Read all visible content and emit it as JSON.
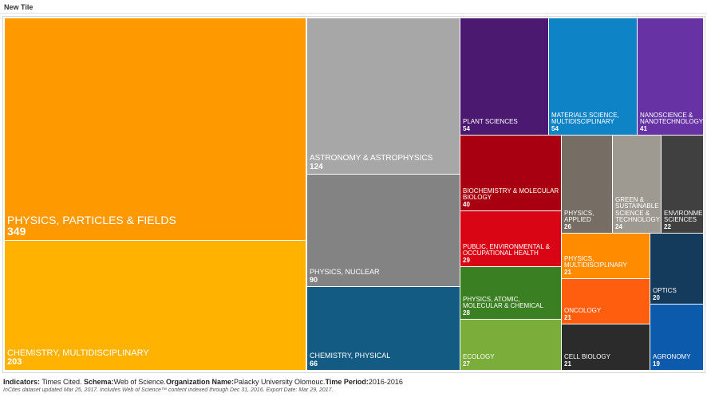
{
  "tile": {
    "title": "New Tile"
  },
  "chart_data": {
    "type": "treemap",
    "title": "",
    "cells": [
      {
        "label": "PHYSICS, PARTICLES & FIELDS",
        "value": 349,
        "color": "#ff9900"
      },
      {
        "label": "CHEMISTRY, MULTIDISCIPLINARY",
        "value": 203,
        "color": "#ffb300"
      },
      {
        "label": "ASTRONOMY & ASTROPHYSICS",
        "value": 124,
        "color": "#a7a7a7"
      },
      {
        "label": "PHYSICS, NUCLEAR",
        "value": 90,
        "color": "#838383"
      },
      {
        "label": "CHEMISTRY, PHYSICAL",
        "value": 66,
        "color": "#135b82"
      },
      {
        "label": "PLANT SCIENCES",
        "value": 54,
        "color": "#4b1a70"
      },
      {
        "label": "MATERIALS SCIENCE, MULTIDISCIPLINARY",
        "value": 54,
        "color": "#0e84c6"
      },
      {
        "label": "NANOSCIENCE & NANOTECHNOLOGY",
        "value": 41,
        "color": "#6632a4"
      },
      {
        "label": "BIOCHEMISTRY & MOLECULAR BIOLOGY",
        "value": 40,
        "color": "#a80010"
      },
      {
        "label": "PHYSICS, APPLIED",
        "value": 26,
        "color": "#766d65"
      },
      {
        "label": "GREEN & SUSTAINABLE SCIENCE & TECHNOLOGY",
        "value": 24,
        "color": "#9e9a92"
      },
      {
        "label": "ENVIRONMENTAL SCIENCES",
        "value": 22,
        "color": "#404040"
      },
      {
        "label": "PUBLIC, ENVIRONMENTAL & OCCUPATIONAL HEALTH",
        "value": 29,
        "color": "#d90514"
      },
      {
        "label": "PHYSICS, MULTIDISCIPLINARY",
        "value": 21,
        "color": "#ff8c00"
      },
      {
        "label": "OPTICS",
        "value": 20,
        "color": "#143a5c"
      },
      {
        "label": "PHYSICS, ATOMIC, MOLECULAR & CHEMICAL",
        "value": 28,
        "color": "#3b7f23"
      },
      {
        "label": "ONCOLOGY",
        "value": 21,
        "color": "#ff5e0e"
      },
      {
        "label": "ECOLOGY",
        "value": 27,
        "color": "#7aad3a"
      },
      {
        "label": "CELL BIOLOGY",
        "value": 21,
        "color": "#2b2b2b"
      },
      {
        "label": "AGRONOMY",
        "value": 19,
        "color": "#0b5aab"
      }
    ]
  },
  "footer": {
    "indicators_key": "Indicators:",
    "indicators_val": " Times Cited. ",
    "schema_key": "Schema:",
    "schema_val": "Web of Science.",
    "org_key": "Organization Name:",
    "org_val": "Palacky University Olomouc.",
    "period_key": "Time Period:",
    "period_val": "2016-2016",
    "note": "InCites dataset updated Mar 25, 2017. Includes Web of Science™ content indexed through Dec 31, 2016. Export Date: Mar 29, 2017."
  }
}
